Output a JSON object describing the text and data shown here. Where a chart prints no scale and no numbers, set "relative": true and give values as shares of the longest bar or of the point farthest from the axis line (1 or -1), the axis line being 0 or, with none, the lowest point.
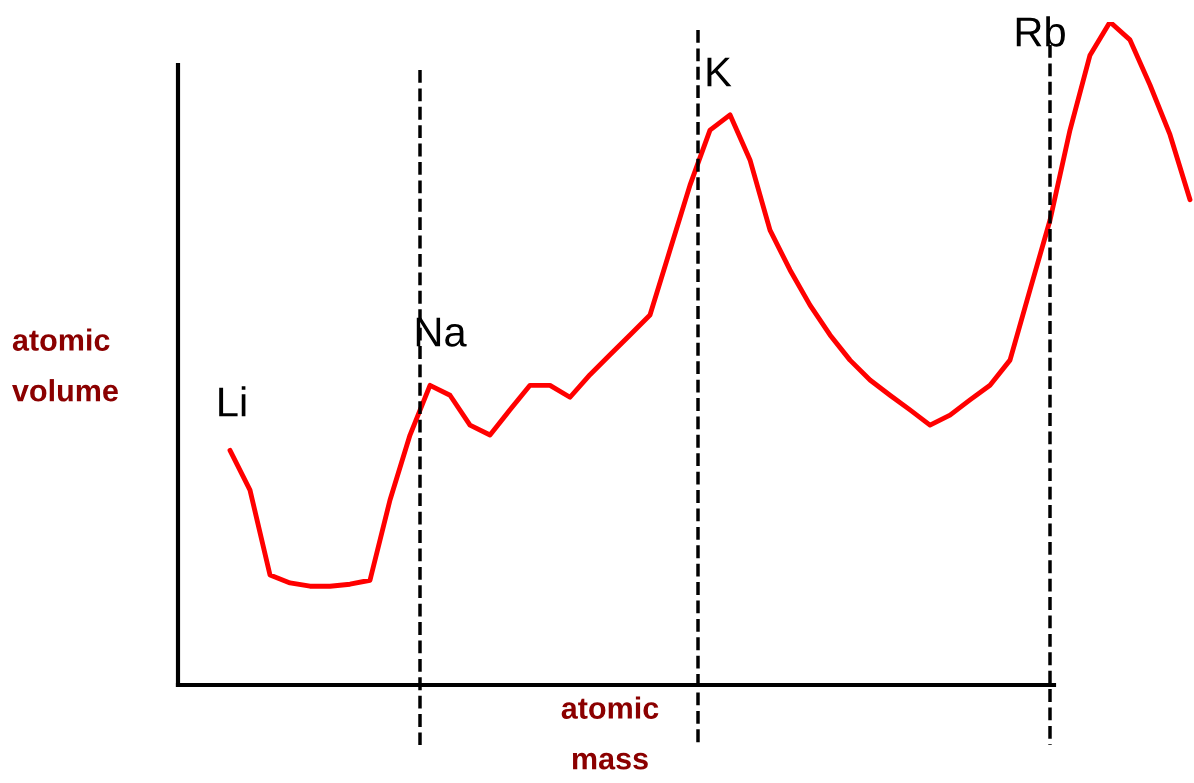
{
  "chart_data": {
    "type": "line",
    "relative": true,
    "xlabel": "atomic\nmass",
    "ylabel": "atomic\nvolume",
    "categories": [
      null,
      null,
      null,
      null,
      null,
      null,
      null,
      null,
      null,
      null,
      null,
      null,
      null,
      null,
      null,
      null,
      null,
      null,
      null,
      null,
      null,
      null,
      null,
      null,
      null,
      null,
      null,
      null,
      null,
      null,
      null,
      null,
      null,
      null,
      null,
      null,
      null,
      null,
      null,
      null,
      null,
      null,
      null,
      null,
      null,
      null,
      null,
      null,
      null
    ],
    "series": [
      {
        "color": "#ff0000",
        "values": [
          0.354,
          0.294,
          0.166,
          0.154,
          0.149,
          0.149,
          0.152,
          0.158,
          0.279,
          0.377,
          0.452,
          0.437,
          0.392,
          0.377,
          0.415,
          0.452,
          0.452,
          0.434,
          0.468,
          0.498,
          0.528,
          0.558,
          0.656,
          0.754,
          0.837,
          0.86,
          0.792,
          0.686,
          0.626,
          0.573,
          0.528,
          0.49,
          0.46,
          0.437,
          0.415,
          0.392,
          0.407,
          0.43,
          0.452,
          0.49,
          0.596,
          0.701,
          0.837,
          0.95,
          1.0,
          0.973,
          0.905,
          0.83,
          0.732
        ]
      }
    ],
    "annotations": [
      "Li",
      "Na",
      "K",
      "Rb"
    ],
    "grid": false,
    "marker": "none",
    "line_style": "solid"
  }
}
